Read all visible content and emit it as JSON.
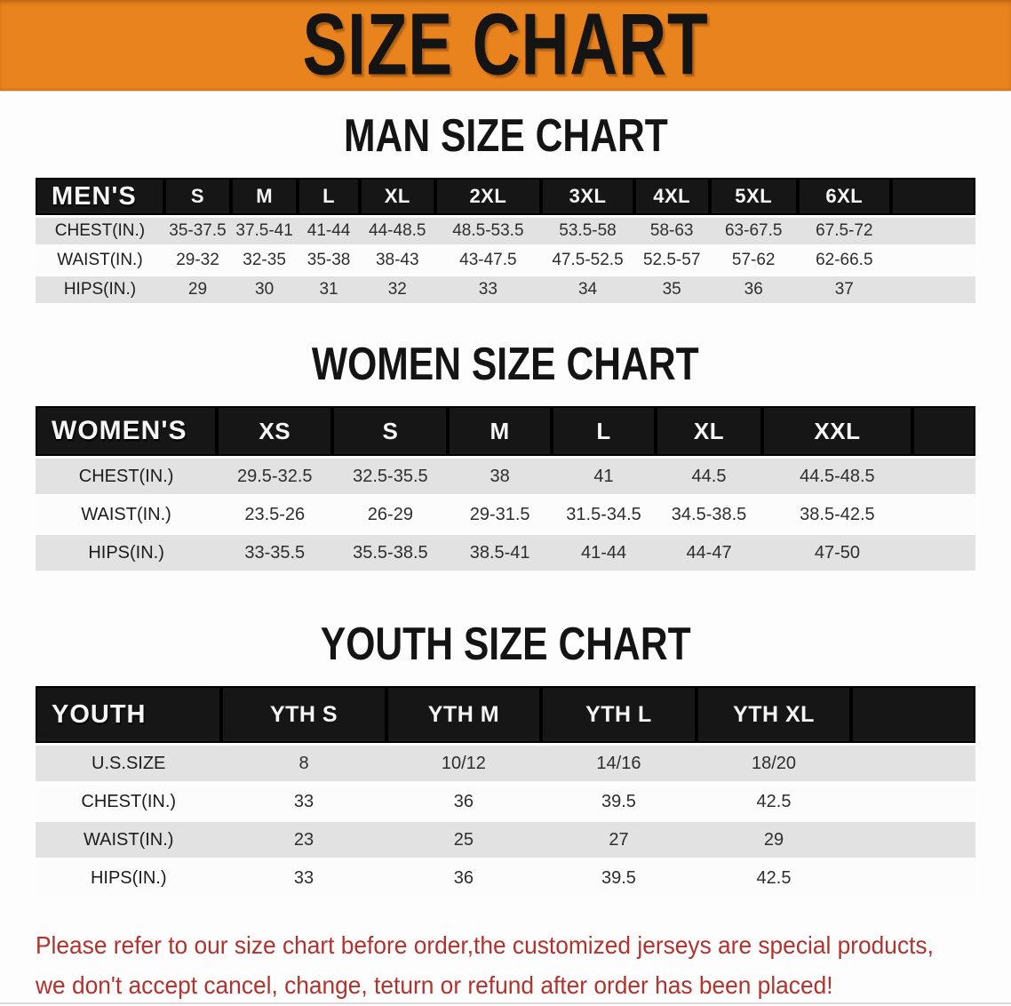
{
  "banner": {
    "title": "SIZE CHART"
  },
  "colors": {
    "banner_bg": "#e8831d",
    "band_black": "#161616",
    "row_gray": "#e2e2e2",
    "footnote_red": "#b1332e",
    "title_black": "#141414"
  },
  "sections": [
    {
      "key": "men",
      "title": "MAN SIZE CHART",
      "table": {
        "header_label": "MEN'S",
        "columns": [
          "S",
          "M",
          "L",
          "XL",
          "2XL",
          "3XL",
          "4XL",
          "5XL",
          "6XL"
        ],
        "rows": [
          {
            "label": "CHEST(IN.)",
            "values": [
              "35-37.5",
              "37.5-41",
              "41-44",
              "44-48.5",
              "48.5-53.5",
              "53.5-58",
              "58-63",
              "63-67.5",
              "67.5-72"
            ]
          },
          {
            "label": "WAIST(IN.)",
            "values": [
              "29-32",
              "32-35",
              "35-38",
              "38-43",
              "43-47.5",
              "47.5-52.5",
              "52.5-57",
              "57-62",
              "62-66.5"
            ]
          },
          {
            "label": "HIPS(IN.)",
            "values": [
              "29",
              "30",
              "31",
              "32",
              "33",
              "34",
              "35",
              "36",
              "37"
            ]
          }
        ]
      }
    },
    {
      "key": "women",
      "title": "WOMEN SIZE CHART",
      "table": {
        "header_label": "WOMEN'S",
        "columns": [
          "XS",
          "S",
          "M",
          "L",
          "XL",
          "XXL"
        ],
        "rows": [
          {
            "label": "CHEST(IN.)",
            "values": [
              "29.5-32.5",
              "32.5-35.5",
              "38",
              "41",
              "44.5",
              "44.5-48.5"
            ]
          },
          {
            "label": "WAIST(IN.)",
            "values": [
              "23.5-26",
              "26-29",
              "29-31.5",
              "31.5-34.5",
              "34.5-38.5",
              "38.5-42.5"
            ]
          },
          {
            "label": "HIPS(IN.)",
            "values": [
              "33-35.5",
              "35.5-38.5",
              "38.5-41",
              "41-44",
              "44-47",
              "47-50"
            ]
          }
        ]
      }
    },
    {
      "key": "youth",
      "title": "YOUTH SIZE CHART",
      "table": {
        "header_label": "YOUTH",
        "columns": [
          "YTH S",
          "YTH M",
          "YTH L",
          "YTH XL"
        ],
        "rows": [
          {
            "label": "U.S.SIZE",
            "values": [
              "8",
              "10/12",
              "14/16",
              "18/20"
            ]
          },
          {
            "label": "CHEST(IN.)",
            "values": [
              "33",
              "36",
              "39.5",
              "42.5"
            ]
          },
          {
            "label": "WAIST(IN.)",
            "values": [
              "23",
              "25",
              "27",
              "29"
            ]
          },
          {
            "label": "HIPS(IN.)",
            "values": [
              "33",
              "36",
              "39.5",
              "42.5"
            ]
          }
        ]
      }
    }
  ],
  "footnote": {
    "line1": "Please refer to our size chart before order,the customized jerseys are special products,",
    "line2": "we don't accept cancel, change, teturn or refund after order has been placed!"
  }
}
